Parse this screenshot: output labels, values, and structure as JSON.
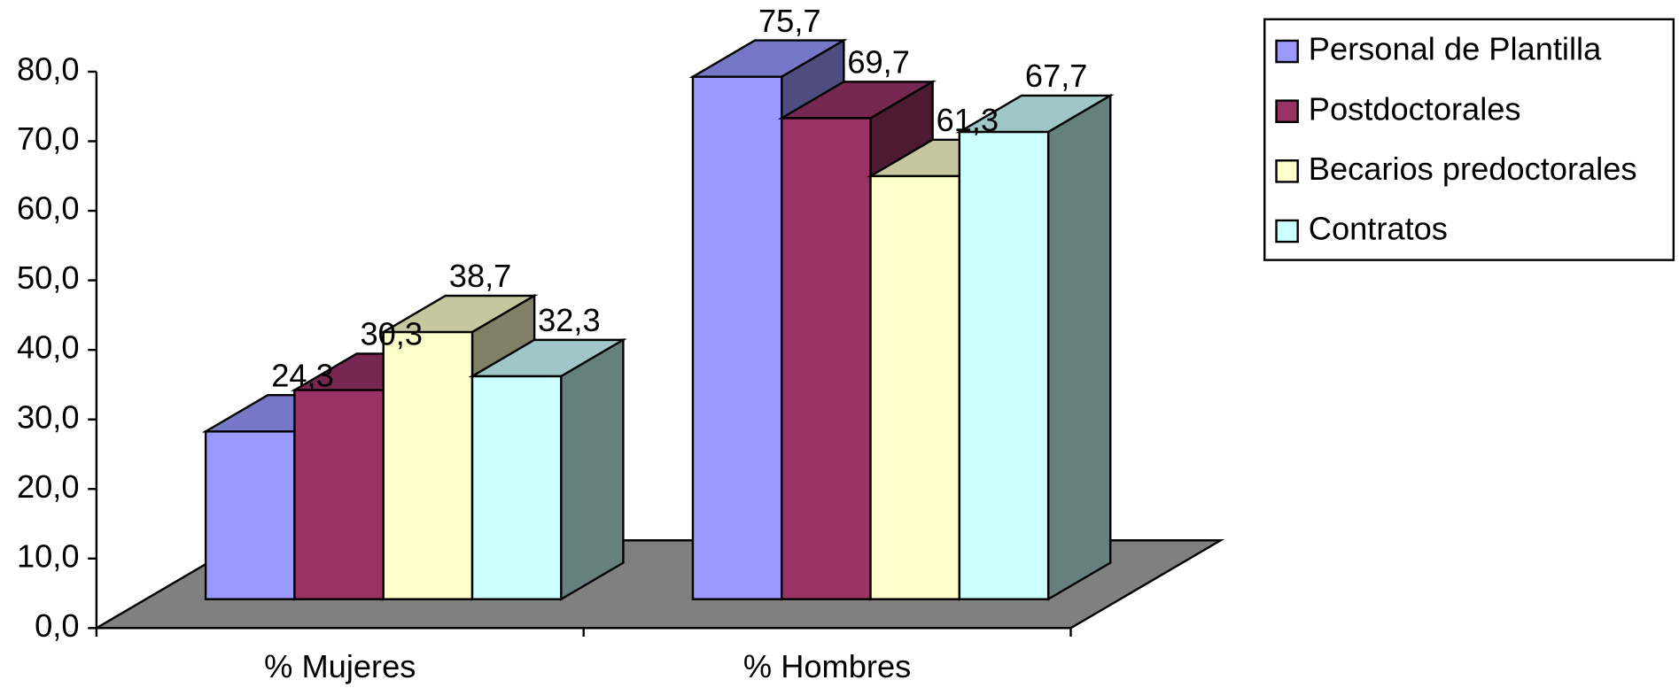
{
  "chart_data": {
    "type": "bar3d",
    "categories": [
      "% Mujeres",
      "% Hombres"
    ],
    "series": [
      {
        "name": "Personal de Plantilla",
        "color": "#9999ff",
        "values": [
          24.3,
          75.7
        ],
        "value_labels": [
          "24,3",
          "75,7"
        ]
      },
      {
        "name": "Postdoctorales",
        "color": "#993366",
        "values": [
          30.3,
          69.7
        ],
        "value_labels": [
          "30,3",
          "69,7"
        ]
      },
      {
        "name": "Becarios predoctorales",
        "color": "#ffffcc",
        "values": [
          38.7,
          61.3
        ],
        "value_labels": [
          "38,7",
          "61,3"
        ]
      },
      {
        "name": "Contratos",
        "color": "#ccffff",
        "values": [
          32.3,
          67.7
        ],
        "value_labels": [
          "32,3",
          "67,7"
        ]
      }
    ],
    "ylim": [
      0,
      80
    ],
    "yticks": [
      {
        "value": 0,
        "label": "0,0"
      },
      {
        "value": 10,
        "label": "10,0"
      },
      {
        "value": 20,
        "label": "20,0"
      },
      {
        "value": 30,
        "label": "30,0"
      },
      {
        "value": 40,
        "label": "40,0"
      },
      {
        "value": 50,
        "label": "50,0"
      },
      {
        "value": 60,
        "label": "60,0"
      },
      {
        "value": 70,
        "label": "70,0"
      },
      {
        "value": 80,
        "label": "80,0"
      }
    ],
    "floor_color": "#808080",
    "legend": "top-right"
  }
}
